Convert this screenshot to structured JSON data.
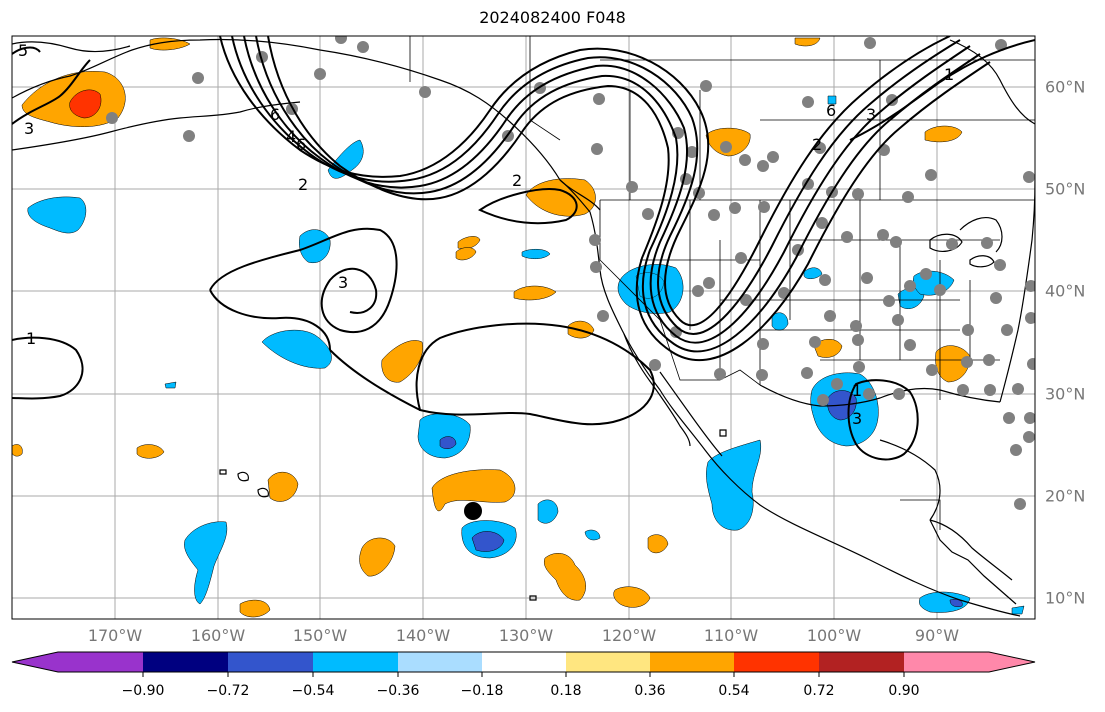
{
  "title": "2024082400 F048",
  "map": {
    "lon_labels": [
      "170°W",
      "160°W",
      "150°W",
      "140°W",
      "130°W",
      "120°W",
      "110°W",
      "100°W",
      "90°W"
    ],
    "lat_labels": [
      "60°N",
      "50°N",
      "40°N",
      "30°N",
      "20°N",
      "10°N"
    ],
    "contour_labels": [
      "5",
      "3",
      "6",
      "4",
      "2",
      "2",
      "3",
      "1",
      "2",
      "6",
      "3",
      "1",
      "6",
      "3",
      "1"
    ],
    "storm_marker": "tropical-cyclone-position"
  },
  "colorbar": {
    "tick_labels": [
      "−0.90",
      "−0.72",
      "−0.54",
      "−0.36",
      "−0.18",
      "0.18",
      "0.36",
      "0.54",
      "0.72",
      "0.90"
    ],
    "colors": [
      "#9933cc",
      "#000080",
      "#3355cc",
      "#00bbff",
      "#aaddff",
      "#ffffff",
      "#ffe680",
      "#ffa500",
      "#ff3300",
      "#b22222",
      "#ff88aa"
    ]
  },
  "colors": {
    "land_outline": "#000000",
    "grid": "#aaaaaa",
    "station_dot": "#808080",
    "contour": "#000000",
    "cyclone_marker": "#000000"
  }
}
